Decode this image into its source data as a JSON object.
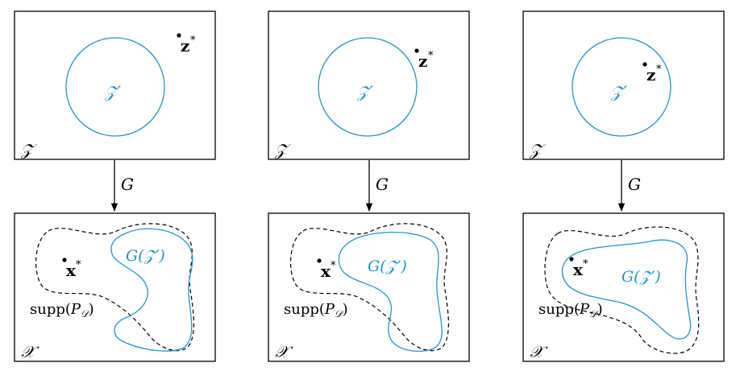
{
  "colors": {
    "accent": "#2a93c9",
    "ink": "#000000",
    "background": "#ffffff"
  },
  "labels": {
    "latent_space": "𝒵",
    "latent_subset": "𝒵′",
    "data_space": "𝒳",
    "map": "G",
    "image_prefix": "G(",
    "image_sub": "𝒵′",
    "image_suffix": ")",
    "supp_prefix": "supp(",
    "supp_P": "P",
    "supp_sub": "𝒟",
    "supp_suffix": ")",
    "z_letter": "z",
    "x_letter": "x",
    "star": "*"
  },
  "panels": [
    {
      "id": "left",
      "z_point": "outside"
    },
    {
      "id": "middle",
      "z_point": "boundary"
    },
    {
      "id": "right",
      "z_point": "inside"
    }
  ]
}
